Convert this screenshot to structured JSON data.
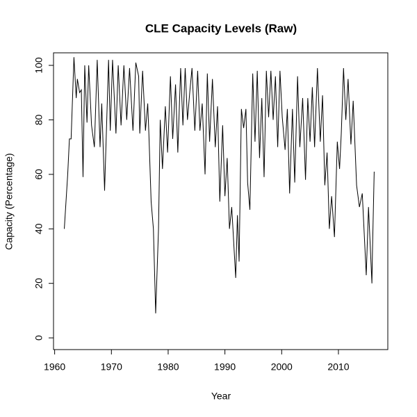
{
  "chart_data": {
    "type": "line",
    "title": "CLE Capacity Levels (Raw)",
    "x_label": "Year",
    "y_label": "Capacity (Percentage)",
    "x": [
      1961.7,
      1962.3,
      1962.6,
      1962.9,
      1963.4,
      1963.8,
      1964.0,
      1964.4,
      1964.7,
      1965.0,
      1965.3,
      1965.7,
      1966.0,
      1966.5,
      1967.0,
      1967.5,
      1968.0,
      1968.3,
      1968.8,
      1969.5,
      1969.8,
      1970.2,
      1970.8,
      1971.2,
      1971.7,
      1972.2,
      1972.7,
      1973.2,
      1973.8,
      1974.3,
      1974.8,
      1975.0,
      1975.5,
      1976.0,
      1976.4,
      1976.6,
      1977.0,
      1977.4,
      1977.8,
      1978.3,
      1978.6,
      1979.0,
      1979.5,
      1979.9,
      1980.4,
      1980.8,
      1981.3,
      1981.7,
      1982.2,
      1982.6,
      1983.0,
      1983.4,
      1983.8,
      1984.2,
      1984.7,
      1985.2,
      1985.6,
      1986.0,
      1986.5,
      1986.9,
      1987.3,
      1987.8,
      1988.3,
      1988.7,
      1989.1,
      1989.6,
      1990.0,
      1990.4,
      1990.8,
      1991.2,
      1991.9,
      1992.2,
      1992.5,
      1992.9,
      1993.3,
      1993.7,
      1994.0,
      1994.4,
      1994.9,
      1995.3,
      1995.7,
      1996.1,
      1996.5,
      1996.9,
      1997.3,
      1997.7,
      1998.1,
      1998.5,
      1998.9,
      1999.3,
      1999.7,
      2000.1,
      2000.6,
      2001.0,
      2001.4,
      2001.9,
      2002.3,
      2002.8,
      2003.2,
      2003.7,
      2004.2,
      2004.6,
      2005.0,
      2005.4,
      2005.8,
      2006.3,
      2006.8,
      2007.2,
      2007.6,
      2008.0,
      2008.4,
      2008.8,
      2009.3,
      2009.8,
      2010.2,
      2010.5,
      2010.9,
      2011.3,
      2011.7,
      2012.2,
      2012.6,
      2013.2,
      2013.7,
      2014.2,
      2014.9,
      2015.3,
      2015.9,
      2016.0,
      2016.3
    ],
    "values": [
      40,
      60,
      73,
      73,
      103,
      88,
      95,
      90,
      91,
      59,
      100,
      79,
      100,
      78,
      70,
      102,
      70,
      86,
      54,
      102,
      76,
      102,
      75,
      100,
      78,
      100,
      80,
      99,
      76,
      101,
      96,
      75,
      98,
      76,
      86,
      75,
      50,
      40,
      9,
      40,
      80,
      62,
      85,
      68,
      96,
      73,
      93,
      68,
      99,
      78,
      99,
      80,
      90,
      99,
      76,
      98,
      76,
      86,
      60,
      97,
      72,
      95,
      70,
      85,
      50,
      78,
      52,
      66,
      40,
      48,
      22,
      45,
      28,
      84,
      77,
      84,
      57,
      47,
      97,
      72,
      98,
      66,
      88,
      59,
      98,
      81,
      98,
      80,
      96,
      70,
      98,
      81,
      69,
      84,
      53,
      84,
      57,
      96,
      70,
      88,
      58,
      88,
      72,
      92,
      70,
      99,
      72,
      89,
      56,
      68,
      40,
      52,
      37,
      72,
      62,
      75,
      99,
      80,
      95,
      71,
      87,
      56,
      48,
      53,
      23,
      48,
      20,
      32,
      61
    ],
    "color": "#000000",
    "xlim": [
      1959.8,
      2018.7
    ],
    "xticks": [
      1960,
      1970,
      1980,
      1990,
      2000,
      2010
    ],
    "ylim": [
      -4.3,
      104.6
    ],
    "yticks": [
      0,
      20,
      40,
      60,
      80,
      100
    ]
  }
}
